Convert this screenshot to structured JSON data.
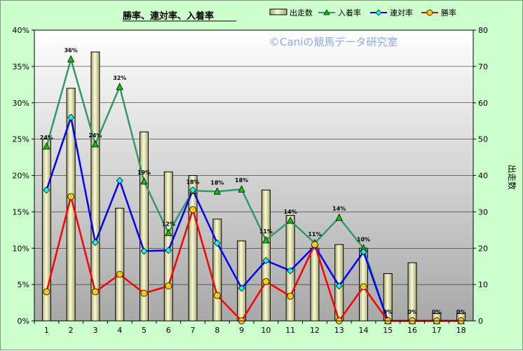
{
  "chart_data": {
    "type": "bar+line",
    "title": "勝率、連対率、入着率",
    "watermark": "©Caniの競馬データ研究室",
    "categories": [
      "1",
      "2",
      "3",
      "4",
      "5",
      "6",
      "7",
      "8",
      "9",
      "10",
      "11",
      "12",
      "13",
      "14",
      "15",
      "16",
      "17",
      "18"
    ],
    "bar_series": {
      "name": "出走数",
      "axis": "right",
      "values": [
        50,
        64,
        74,
        31,
        52,
        41,
        40,
        28,
        22,
        36,
        29,
        20,
        21,
        20,
        13,
        16,
        2,
        2
      ],
      "fill": "#eeeeb0",
      "stroke": "#000000"
    },
    "line_series": [
      {
        "name": "入着率",
        "values": [
          24,
          36,
          24.3,
          32.2,
          19.2,
          12.1,
          17.9,
          17.8,
          18.1,
          11.1,
          13.8,
          10.7,
          14.2,
          10.0,
          0,
          0,
          0,
          0
        ],
        "color": "#339966",
        "marker": "triangle",
        "marker_fill": "#00cc00"
      },
      {
        "name": "連対率",
        "values": [
          18,
          28,
          10.8,
          19.3,
          9.6,
          9.7,
          18,
          10.7,
          4.5,
          8.3,
          6.9,
          10.3,
          4.8,
          9.5,
          0,
          0,
          0,
          0
        ],
        "color": "#0000ff",
        "marker": "diamond",
        "marker_fill": "#00ffff"
      },
      {
        "name": "勝率",
        "values": [
          4,
          17.1,
          4,
          6.4,
          3.8,
          4.8,
          15.3,
          3.5,
          0,
          5.4,
          3.4,
          10.5,
          0,
          4.7,
          0,
          0,
          0,
          0
        ],
        "color": "#ff0000",
        "marker": "circle",
        "marker_fill": "#ffcc00"
      }
    ],
    "data_labels": [
      "24%",
      "36%",
      "24%",
      "32%",
      "19%",
      "12%",
      "18%",
      "18%",
      "18%",
      "11%",
      "14%",
      "11%",
      "14%",
      "10%",
      "0%",
      "0%",
      "0%",
      "0%"
    ],
    "y_left": {
      "min": 0,
      "max": 40,
      "step": 5,
      "tick_labels": [
        "0%",
        "5%",
        "10%",
        "15%",
        "20%",
        "25%",
        "30%",
        "35%",
        "40%"
      ]
    },
    "y_right": {
      "label": "出走数",
      "min": 0,
      "max": 80,
      "step": 10,
      "tick_labels": [
        "0",
        "10",
        "20",
        "30",
        "40",
        "50",
        "60",
        "70",
        "80"
      ]
    },
    "legend": {
      "placement": "top-right",
      "entries": [
        "出走数",
        "入着率",
        "連対率",
        "勝率"
      ]
    },
    "grid": true
  }
}
